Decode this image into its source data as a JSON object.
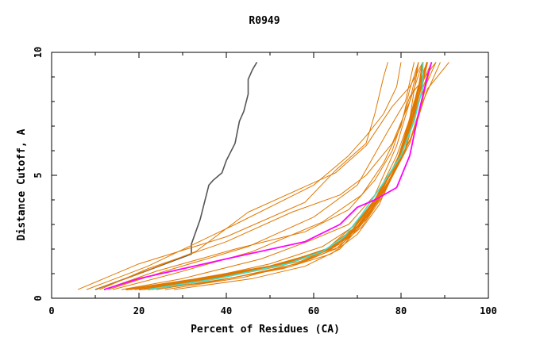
{
  "chart_data": {
    "type": "line",
    "title": "R0949",
    "xlabel": "Percent of Residues (CA)",
    "ylabel": "Distance Cutoff, A",
    "xlim": [
      0,
      100
    ],
    "ylim": [
      0,
      10
    ],
    "xticks": [
      0,
      20,
      40,
      60,
      80,
      100
    ],
    "yticks": [
      0,
      5,
      10
    ],
    "grid": false,
    "colors": {
      "orange": "#e07800",
      "gray": "#555555",
      "magenta": "#ff00ff",
      "cyan": "#40e0d0"
    },
    "series": [
      {
        "color": "gray",
        "width": 1.6,
        "points": [
          [
            10,
            0.35
          ],
          [
            20,
            1.0
          ],
          [
            32,
            1.8
          ],
          [
            32,
            2.2
          ],
          [
            34,
            3.2
          ],
          [
            36,
            4.6
          ],
          [
            37,
            4.8
          ],
          [
            39,
            5.1
          ],
          [
            40,
            5.6
          ],
          [
            42,
            6.3
          ],
          [
            43,
            7.2
          ],
          [
            44,
            7.6
          ],
          [
            45,
            8.3
          ],
          [
            45,
            8.9
          ],
          [
            46,
            9.3
          ],
          [
            47,
            9.6
          ]
        ]
      },
      {
        "color": "orange",
        "width": 1,
        "points": [
          [
            6,
            0.35
          ],
          [
            20,
            1.4
          ],
          [
            40,
            2.5
          ],
          [
            58,
            3.9
          ],
          [
            65,
            5.2
          ],
          [
            72,
            6.3
          ],
          [
            74,
            7.5
          ],
          [
            76,
            9.0
          ],
          [
            77,
            9.6
          ]
        ]
      },
      {
        "color": "orange",
        "width": 1,
        "points": [
          [
            8,
            0.35
          ],
          [
            22,
            1.3
          ],
          [
            42,
            3.0
          ],
          [
            60,
            4.6
          ],
          [
            68,
            5.8
          ],
          [
            72,
            6.6
          ],
          [
            76,
            7.5
          ],
          [
            79,
            8.6
          ],
          [
            80,
            9.6
          ]
        ]
      },
      {
        "color": "orange",
        "width": 1,
        "points": [
          [
            10,
            0.35
          ],
          [
            20,
            1.0
          ],
          [
            33,
            1.9
          ],
          [
            45,
            3.5
          ],
          [
            65,
            5.1
          ],
          [
            72,
            6.2
          ],
          [
            78,
            7.8
          ],
          [
            82,
            8.6
          ],
          [
            85,
            9.6
          ]
        ]
      },
      {
        "color": "orange",
        "width": 1,
        "points": [
          [
            11,
            0.35
          ],
          [
            22,
            1.2
          ],
          [
            40,
            2.3
          ],
          [
            55,
            3.5
          ],
          [
            66,
            4.2
          ],
          [
            72,
            5.0
          ],
          [
            78,
            6.3
          ],
          [
            82,
            8.0
          ],
          [
            84,
            9.6
          ]
        ]
      },
      {
        "color": "orange",
        "width": 1,
        "points": [
          [
            12,
            0.35
          ],
          [
            24,
            1.1
          ],
          [
            42,
            2.0
          ],
          [
            58,
            2.7
          ],
          [
            68,
            3.6
          ],
          [
            74,
            4.8
          ],
          [
            78,
            6.0
          ],
          [
            82,
            8.2
          ],
          [
            88,
            9.6
          ]
        ]
      },
      {
        "color": "orange",
        "width": 1,
        "points": [
          [
            13,
            0.35
          ],
          [
            26,
            1.1
          ],
          [
            45,
            2.1
          ],
          [
            60,
            3.3
          ],
          [
            70,
            4.6
          ],
          [
            77,
            6.8
          ],
          [
            81,
            8.0
          ],
          [
            83,
            9.6
          ]
        ]
      },
      {
        "color": "orange",
        "width": 1,
        "points": [
          [
            14,
            0.35
          ],
          [
            28,
            1.0
          ],
          [
            46,
            1.9
          ],
          [
            62,
            3.1
          ],
          [
            71,
            4.2
          ],
          [
            76,
            5.5
          ],
          [
            80,
            7.0
          ],
          [
            82,
            8.5
          ],
          [
            84,
            9.6
          ]
        ]
      },
      {
        "color": "orange",
        "width": 1,
        "points": [
          [
            16,
            0.35
          ],
          [
            30,
            0.8
          ],
          [
            48,
            1.6
          ],
          [
            60,
            2.4
          ],
          [
            68,
            3.0
          ],
          [
            74,
            4.2
          ],
          [
            79,
            6.2
          ],
          [
            82,
            8.0
          ],
          [
            85,
            9.6
          ]
        ]
      },
      {
        "color": "orange",
        "width": 1,
        "points": [
          [
            18,
            0.35
          ],
          [
            32,
            0.7
          ],
          [
            50,
            1.4
          ],
          [
            62,
            2.1
          ],
          [
            69,
            2.9
          ],
          [
            74,
            4.0
          ],
          [
            79,
            5.8
          ],
          [
            83,
            7.8
          ],
          [
            86,
            9.6
          ]
        ]
      },
      {
        "color": "orange",
        "width": 1,
        "points": [
          [
            20,
            0.35
          ],
          [
            35,
            0.7
          ],
          [
            52,
            1.3
          ],
          [
            63,
            2.0
          ],
          [
            70,
            3.1
          ],
          [
            76,
            4.5
          ],
          [
            80,
            6.0
          ],
          [
            83,
            8.0
          ],
          [
            87,
            9.6
          ]
        ]
      },
      {
        "color": "orange",
        "width": 1,
        "points": [
          [
            22,
            0.35
          ],
          [
            38,
            0.8
          ],
          [
            54,
            1.4
          ],
          [
            64,
            2.0
          ],
          [
            70,
            2.8
          ],
          [
            75,
            4.0
          ],
          [
            80,
            5.8
          ],
          [
            84,
            8.0
          ],
          [
            88,
            9.6
          ]
        ]
      },
      {
        "color": "orange",
        "width": 1,
        "points": [
          [
            21,
            0.35
          ],
          [
            36,
            0.65
          ],
          [
            55,
            1.3
          ],
          [
            65,
            2.1
          ],
          [
            71,
            3.1
          ],
          [
            76,
            4.3
          ],
          [
            81,
            6.0
          ],
          [
            84,
            8.0
          ],
          [
            87,
            9.6
          ]
        ]
      },
      {
        "color": "orange",
        "width": 1,
        "points": [
          [
            19,
            0.35
          ],
          [
            34,
            0.6
          ],
          [
            53,
            1.2
          ],
          [
            64,
            1.8
          ],
          [
            70,
            2.6
          ],
          [
            75,
            3.8
          ],
          [
            79,
            5.5
          ],
          [
            82,
            7.3
          ],
          [
            84,
            9.6
          ]
        ]
      },
      {
        "color": "orange",
        "width": 1,
        "points": [
          [
            23,
            0.35
          ],
          [
            40,
            0.9
          ],
          [
            57,
            1.5
          ],
          [
            66,
            2.2
          ],
          [
            72,
            3.2
          ],
          [
            77,
            4.6
          ],
          [
            82,
            6.3
          ],
          [
            85,
            8.0
          ],
          [
            89,
            9.6
          ]
        ]
      },
      {
        "color": "orange",
        "width": 1,
        "points": [
          [
            24,
            0.35
          ],
          [
            42,
            0.85
          ],
          [
            56,
            1.4
          ],
          [
            65,
            2.0
          ],
          [
            71,
            2.9
          ],
          [
            76,
            4.2
          ],
          [
            81,
            6.1
          ],
          [
            84,
            8.2
          ],
          [
            86,
            9.6
          ]
        ]
      },
      {
        "color": "orange",
        "width": 1,
        "points": [
          [
            26,
            0.35
          ],
          [
            44,
            0.85
          ],
          [
            58,
            1.5
          ],
          [
            66,
            2.1
          ],
          [
            72,
            3.3
          ],
          [
            78,
            5.0
          ],
          [
            83,
            6.8
          ],
          [
            86,
            8.5
          ],
          [
            91,
            9.6
          ]
        ]
      },
      {
        "color": "orange",
        "width": 1,
        "points": [
          [
            28,
            0.35
          ],
          [
            46,
            0.8
          ],
          [
            58,
            1.3
          ],
          [
            66,
            2.0
          ],
          [
            71,
            3.0
          ],
          [
            77,
            4.7
          ],
          [
            82,
            6.4
          ],
          [
            85,
            8.1
          ],
          [
            87,
            9.6
          ]
        ]
      },
      {
        "color": "orange",
        "width": 2,
        "points": [
          [
            17,
            0.35
          ],
          [
            32,
            0.75
          ],
          [
            50,
            1.3
          ],
          [
            62,
            1.9
          ],
          [
            68,
            2.5
          ],
          [
            73,
            3.5
          ],
          [
            78,
            5.0
          ],
          [
            82,
            6.8
          ],
          [
            84,
            8.5
          ],
          [
            85,
            9.6
          ]
        ]
      },
      {
        "color": "orange",
        "width": 2,
        "points": [
          [
            20,
            0.35
          ],
          [
            34,
            0.75
          ],
          [
            52,
            1.35
          ],
          [
            63,
            2.0
          ],
          [
            69,
            2.8
          ],
          [
            74,
            4.0
          ],
          [
            79,
            5.5
          ],
          [
            82,
            7.2
          ],
          [
            84,
            8.6
          ],
          [
            86,
            9.6
          ]
        ]
      },
      {
        "color": "orange",
        "width": 2,
        "points": [
          [
            22,
            0.35
          ],
          [
            36,
            0.75
          ],
          [
            53,
            1.35
          ],
          [
            64,
            2.0
          ],
          [
            70,
            2.9
          ],
          [
            75,
            4.2
          ],
          [
            80,
            5.9
          ],
          [
            83,
            7.6
          ],
          [
            85,
            8.8
          ],
          [
            86,
            9.6
          ]
        ]
      },
      {
        "color": "cyan",
        "width": 1.6,
        "points": [
          [
            22,
            0.35
          ],
          [
            38,
            0.8
          ],
          [
            54,
            1.4
          ],
          [
            62,
            1.9
          ],
          [
            67,
            2.5
          ],
          [
            71,
            3.4
          ],
          [
            76,
            4.7
          ],
          [
            80,
            5.8
          ],
          [
            83,
            7.2
          ],
          [
            85,
            8.6
          ],
          [
            85,
            9.6
          ]
        ]
      },
      {
        "color": "magenta",
        "width": 1.8,
        "points": [
          [
            12,
            0.35
          ],
          [
            20,
            0.8
          ],
          [
            40,
            1.6
          ],
          [
            58,
            2.3
          ],
          [
            66,
            3.0
          ],
          [
            70,
            3.7
          ],
          [
            74,
            4.0
          ],
          [
            79,
            4.5
          ],
          [
            82,
            5.8
          ],
          [
            84,
            7.5
          ],
          [
            86,
            9.0
          ],
          [
            87,
            9.6
          ]
        ]
      }
    ]
  }
}
